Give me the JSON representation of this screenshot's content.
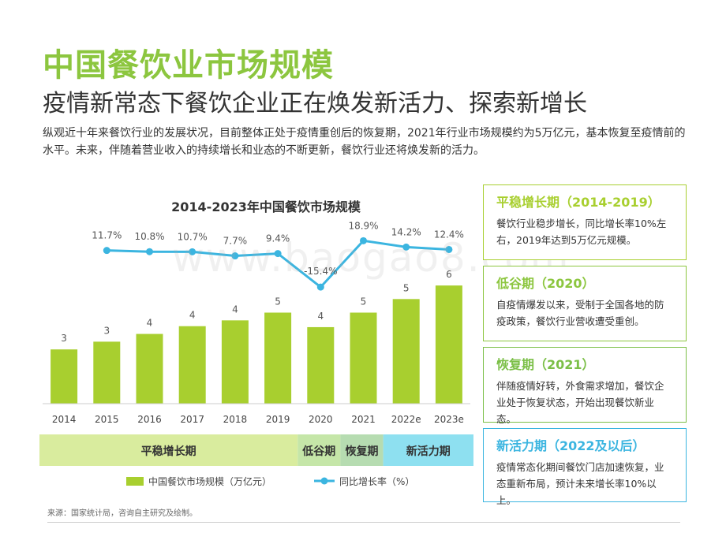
{
  "page": {
    "title": "中国餐饮业市场规模",
    "subtitle": "疫情新常态下餐饮企业正在焕发新活力、探索新增长",
    "intro": "纵观近十年来餐饮行业的发展状况，目前整体正处于疫情重创后的恢复期，2021年行业市场规模约为5万亿元，基本恢复至疫情前的水平。未来，伴随着营业收入的持续增长和业态的不断更新，餐饮行业还将焕发新的活力。",
    "watermark": "www.baogao8.com",
    "source": "来源：国家统计局，咨询自主研究及绘制。"
  },
  "colors": {
    "bar": "#a8cf2f",
    "line": "#3bb5e0",
    "title": "#8cc63f",
    "phase1_bg": "#d9ec9e",
    "phase2_bg": "#c5e6a8",
    "phase3_bg": "#b6dcb1",
    "phase4_bg": "#8ee0f0"
  },
  "chart_data": {
    "type": "bar",
    "title": "2014-2023年中国餐饮市场规模",
    "categories": [
      "2014",
      "2015",
      "2016",
      "2017",
      "2018",
      "2019",
      "2020",
      "2021",
      "2022e",
      "2023e"
    ],
    "series": [
      {
        "name": "中国餐饮市场规模（万亿元）",
        "type": "bar",
        "values": [
          2.8,
          3.2,
          3.6,
          4.0,
          4.3,
          4.7,
          3.95,
          4.7,
          5.4,
          6.1
        ],
        "labels": [
          "3",
          "3",
          "4",
          "4",
          "4",
          "5",
          "4",
          "5",
          "5",
          "6"
        ]
      },
      {
        "name": "同比增长率（%）",
        "type": "line",
        "values": [
          11.7,
          10.8,
          10.7,
          7.7,
          9.4,
          -15.4,
          18.9,
          14.2,
          12.4
        ],
        "x": [
          "2015",
          "2016",
          "2017",
          "2018",
          "2019",
          "2020",
          "2021",
          "2022e",
          "2023e"
        ],
        "labels": [
          "11.7%",
          "10.8%",
          "10.7%",
          "7.7%",
          "9.4%",
          "-15.4%",
          "18.9%",
          "14.2%",
          "12.4%"
        ]
      }
    ],
    "bar_ylim": [
      0,
      7
    ],
    "line_ylim": [
      -20,
      22
    ],
    "legend": {
      "position": "bottom"
    },
    "phases": [
      {
        "label": "平稳增长期",
        "start": "2014",
        "end": "2019",
        "color": "#d9ec9e"
      },
      {
        "label": "低谷期",
        "start": "2020",
        "end": "2020",
        "color": "#c5e6a8"
      },
      {
        "label": "恢复期",
        "start": "2021",
        "end": "2021",
        "color": "#b6dcb1"
      },
      {
        "label": "新活力期",
        "start": "2022e",
        "end": "2023e",
        "color": "#8ee0f0"
      }
    ]
  },
  "panels": [
    {
      "title": "平稳增长期（2014-2019）",
      "body": "餐饮行业稳步增长，同比增长率10%左右，2019年达到5万亿元规模。",
      "color": "#a8cf2f"
    },
    {
      "title": "低谷期（2020）",
      "body": "自疫情爆发以来，受制于全国各地的防疫政策，餐饮行业营收遭受重创。",
      "color": "#8cc63f"
    },
    {
      "title": "恢复期（2021）",
      "body": "伴随疫情好转，外食需求增加，餐饮企业处于恢复状态，开始出现餐饮新业态。",
      "color": "#7bbf47"
    },
    {
      "title": "新活力期（2022及以后）",
      "body": "疫情常态化期间餐饮门店加速恢复，业态重新布局，预计未来增长率10%以上。",
      "color": "#3bb5e0"
    }
  ]
}
